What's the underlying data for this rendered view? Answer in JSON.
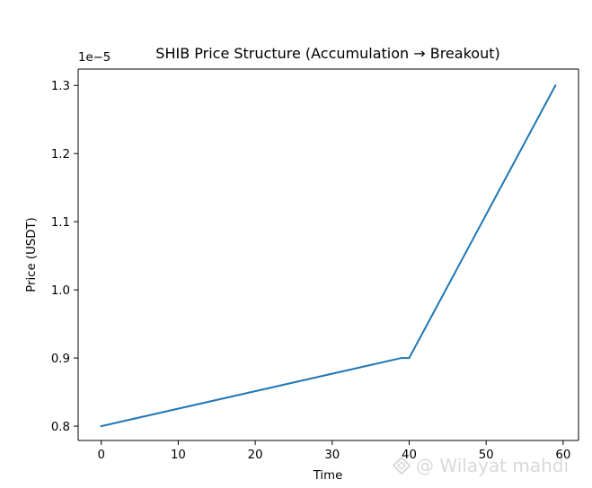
{
  "chart_data": {
    "type": "line",
    "title": "SHIB Price Structure (Accumulation → Breakout)",
    "xlabel": "Time",
    "ylabel": "Price (USDT)",
    "offset_label": "1e−5",
    "xlim": [
      -3,
      62
    ],
    "ylim": [
      0.779,
      1.324
    ],
    "xticks": [
      0,
      10,
      20,
      30,
      40,
      50,
      60
    ],
    "yticks": [
      0.8,
      0.9,
      1.0,
      1.1,
      1.2,
      1.3
    ],
    "xtick_labels": [
      "0",
      "10",
      "20",
      "30",
      "40",
      "50",
      "60"
    ],
    "ytick_labels": [
      "0.8",
      "0.9",
      "1.0",
      "1.1",
      "1.2",
      "1.3"
    ],
    "grid": false,
    "series": [
      {
        "color": "#1f77b4",
        "x": [
          0,
          39,
          40,
          59
        ],
        "y": [
          0.8,
          0.9,
          0.9,
          1.3
        ]
      }
    ]
  },
  "watermark": {
    "text": "@ Wilayat mahdi",
    "icon": "watermark-logo-icon"
  }
}
